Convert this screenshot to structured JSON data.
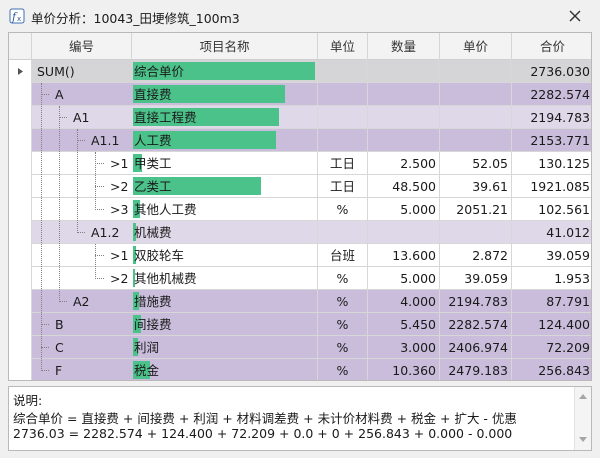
{
  "window": {
    "title": "单价分析：10043_田埂修筑_100m3",
    "icon": "app-function-icon",
    "close_icon": "close-icon"
  },
  "columns": {
    "code": "编号",
    "name": "项目名称",
    "unit": "单位",
    "qty": "数量",
    "price": "单价",
    "total": "合价"
  },
  "rows": [
    {
      "code": "SUM()",
      "name": "综合单价",
      "unit": "",
      "qty": "",
      "price": "",
      "total": "2736.030"
    },
    {
      "code": "A",
      "name": "直接费",
      "unit": "",
      "qty": "",
      "price": "",
      "total": "2282.574"
    },
    {
      "code": "A1",
      "name": "直接工程费",
      "unit": "",
      "qty": "",
      "price": "",
      "total": "2194.783"
    },
    {
      "code": "A1.1",
      "name": "人工费",
      "unit": "",
      "qty": "",
      "price": "",
      "total": "2153.771"
    },
    {
      "code": ">1",
      "name": "甲类工",
      "unit": "工日",
      "qty": "2.500",
      "price": "52.05",
      "total": "130.125"
    },
    {
      "code": ">2",
      "name": "乙类工",
      "unit": "工日",
      "qty": "48.500",
      "price": "39.61",
      "total": "1921.085"
    },
    {
      "code": ">3",
      "name": "其他人工费",
      "unit": "%",
      "qty": "5.000",
      "price": "2051.21",
      "total": "102.561"
    },
    {
      "code": "A1.2",
      "name": "机械费",
      "unit": "",
      "qty": "",
      "price": "",
      "total": "41.012"
    },
    {
      "code": ">1",
      "name": "双胶轮车",
      "unit": "台班",
      "qty": "13.600",
      "price": "2.872",
      "total": "39.059"
    },
    {
      "code": ">2",
      "name": "其他机械费",
      "unit": "%",
      "qty": "5.000",
      "price": "39.059",
      "total": "1.953"
    },
    {
      "code": "A2",
      "name": "措施费",
      "unit": "%",
      "qty": "4.000",
      "price": "2194.783",
      "total": "87.791"
    },
    {
      "code": "B",
      "name": "间接费",
      "unit": "%",
      "qty": "5.450",
      "price": "2282.574",
      "total": "124.400"
    },
    {
      "code": "C",
      "name": "利润",
      "unit": "%",
      "qty": "3.000",
      "price": "2406.974",
      "total": "72.209"
    },
    {
      "code": "F",
      "name": "税金",
      "unit": "%",
      "qty": "10.360",
      "price": "2479.183",
      "total": "256.843"
    }
  ],
  "row_share_of_total": [
    1.0,
    0.834,
    0.802,
    0.787,
    0.048,
    0.702,
    0.037,
    0.015,
    0.014,
    0.001,
    0.032,
    0.045,
    0.026,
    0.094
  ],
  "info": {
    "label": "说明:",
    "formula": "综合单价 = 直接费 + 间接费 + 利润 + 材料调差费 + 未计价材料费 + 税金 + 扩大 - 优惠",
    "calc": "2736.03 = 2282.574 + 124.400 + 72.209 + 0.0 + 0 + 256.843 + 0.000 - 0.000"
  },
  "colors": {
    "bar": "#4cc28b",
    "row_purple": "#c9bddb",
    "row_lavender": "#ded8e8",
    "row_gray": "#d5d5d8",
    "row_white": "#ffffff"
  }
}
